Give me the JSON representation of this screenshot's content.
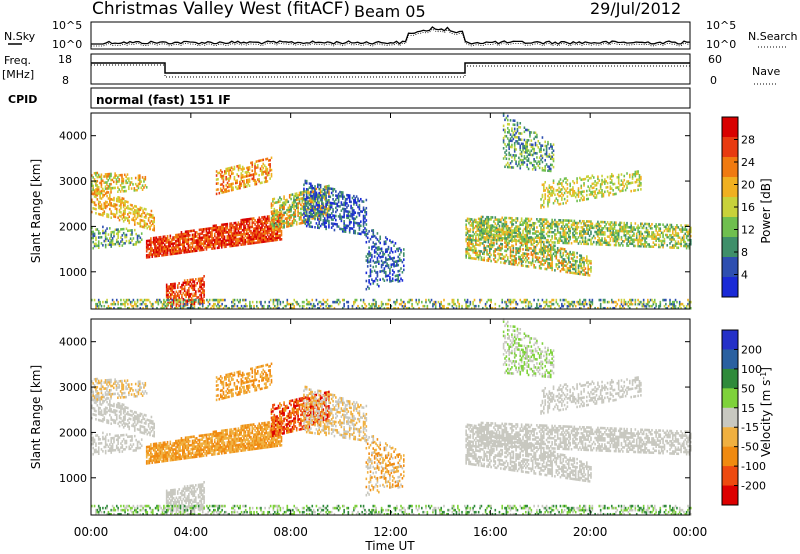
{
  "header": {
    "title": "Christmas Valley West (fitACF)",
    "beam": "Beam 05",
    "date": "29/Jul/2012"
  },
  "panels": {
    "nsky_label": "N.Sky",
    "nsearch_label": "N.Search",
    "noise_left_ticks": [
      "10^5",
      "10^0"
    ],
    "noise_right_ticks": [
      "10^5",
      "10^0"
    ],
    "freq_label_1": "Freq.",
    "freq_label_2": "[MHz]",
    "freq_ticks": [
      "18",
      "8"
    ],
    "nave_label": "Nave",
    "nave_ticks": [
      "60",
      "0"
    ],
    "cpid_label": "CPID",
    "cpid_text": "normal (fast) 151 IF"
  },
  "colors": {
    "power_scale": [
      "#1a2ad6",
      "#2e4fb0",
      "#3f8f6a",
      "#6fbf4f",
      "#c8d23a",
      "#f0b020",
      "#f07a10",
      "#e83a10",
      "#d80000"
    ],
    "velocity_scale": [
      "#2430c8",
      "#2a60a0",
      "#2f8a3a",
      "#7ed23a",
      "#c8c8c0",
      "#f0b040",
      "#f08a10",
      "#ee4a10",
      "#dd0000"
    ]
  },
  "chart_data": [
    {
      "type": "heatmap",
      "name": "power",
      "xlabel": "Time UT",
      "ylabel": "Slant Range [km]",
      "x_ticks": [
        "00:00",
        "04:00",
        "08:00",
        "12:00",
        "16:00",
        "20:00",
        "00:00"
      ],
      "xlim_hours": [
        0,
        24
      ],
      "y_ticks": [
        1000,
        2000,
        3000,
        4000
      ],
      "ylim": [
        180,
        4500
      ],
      "colorbar_label": "Power [dB]",
      "colorbar_ticks": [
        4,
        8,
        12,
        16,
        20,
        24,
        28
      ],
      "colorbar_range": [
        0,
        30
      ]
    },
    {
      "type": "heatmap",
      "name": "velocity",
      "xlabel": "Time UT",
      "ylabel": "Slant Range [km]",
      "x_ticks": [
        "00:00",
        "04:00",
        "08:00",
        "12:00",
        "16:00",
        "20:00",
        "00:00"
      ],
      "xlim_hours": [
        0,
        24
      ],
      "y_ticks": [
        1000,
        2000,
        3000,
        4000
      ],
      "ylim": [
        180,
        4500
      ],
      "colorbar_label": "Velocity [m s^-1]",
      "colorbar_ticks": [
        200,
        100,
        50,
        15,
        -15,
        -50,
        -100,
        -200
      ]
    }
  ]
}
